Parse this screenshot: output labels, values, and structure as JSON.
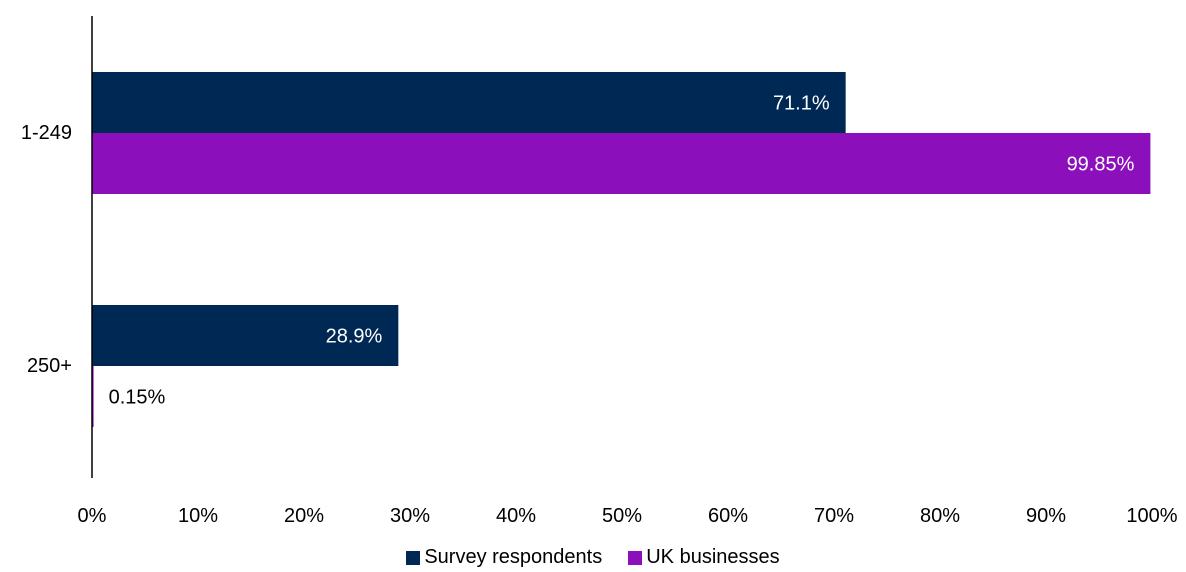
{
  "chart_data": {
    "type": "bar",
    "orientation": "horizontal",
    "categories": [
      "1-249",
      "250+"
    ],
    "series": [
      {
        "name": "Survey respondents",
        "values": [
          71.1,
          28.9
        ],
        "labels": [
          "71.1%",
          "28.9%"
        ],
        "color": "#002855"
      },
      {
        "name": "UK businesses",
        "values": [
          99.85,
          0.15
        ],
        "labels": [
          "99.85%",
          "0.15%"
        ],
        "color": "#8B0FBB"
      }
    ],
    "xlim": [
      0,
      100
    ],
    "xticks": [
      "0%",
      "10%",
      "20%",
      "30%",
      "40%",
      "50%",
      "60%",
      "70%",
      "80%",
      "90%",
      "100%"
    ],
    "grid": false,
    "legend_position": "bottom"
  }
}
